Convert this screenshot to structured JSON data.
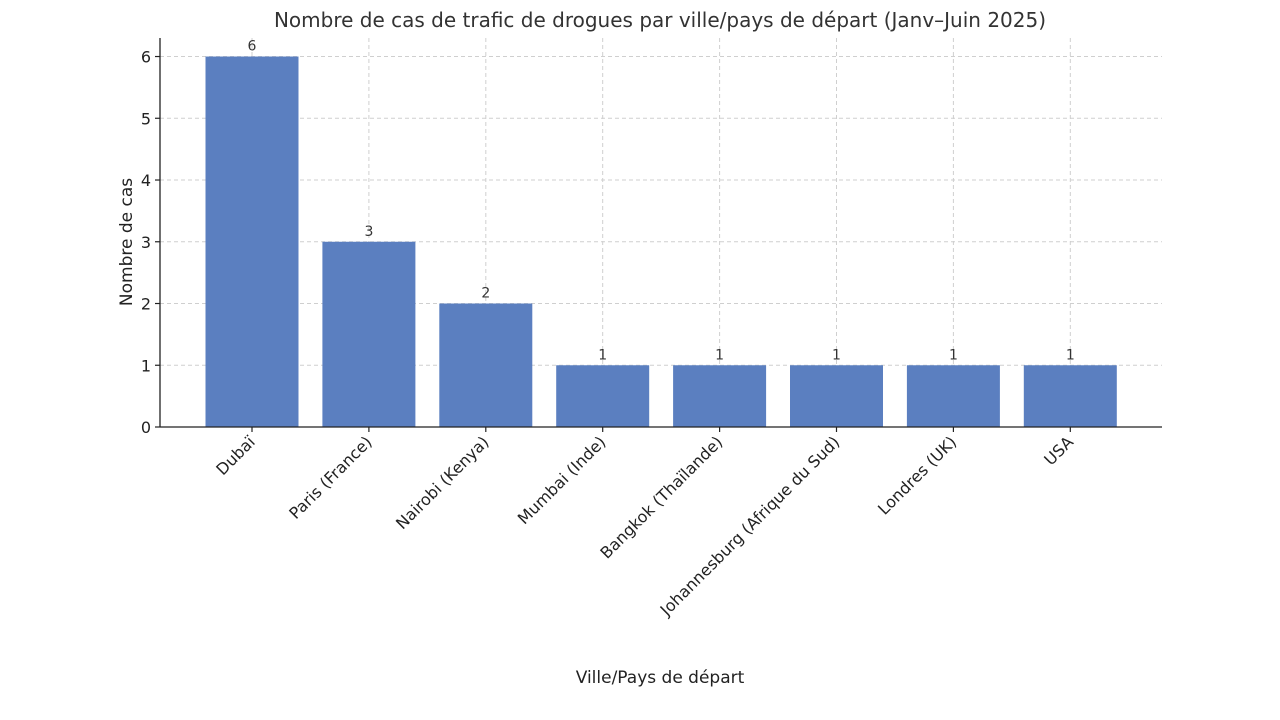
{
  "chart_data": {
    "type": "bar",
    "title": "Nombre de cas de trafic de drogues par ville/pays de départ (Janv–Juin 2025)",
    "xlabel": "Ville/Pays de départ",
    "ylabel": "Nombre de cas",
    "categories": [
      "Dubaï",
      "Paris (France)",
      "Nairobi (Kenya)",
      "Mumbai (Inde)",
      "Bangkok (Thaïlande)",
      "Johannesburg (Afrique du Sud)",
      "Londres (UK)",
      "USA"
    ],
    "values": [
      6,
      3,
      2,
      1,
      1,
      1,
      1,
      1
    ],
    "data_labels": [
      "6",
      "3",
      "2",
      "1",
      "1",
      "1",
      "1",
      "1"
    ],
    "ylim": [
      0,
      6.3
    ],
    "yticks": [
      0,
      1,
      2,
      3,
      4,
      5,
      6
    ],
    "grid": true,
    "bar_color": "#5b7fc0"
  }
}
